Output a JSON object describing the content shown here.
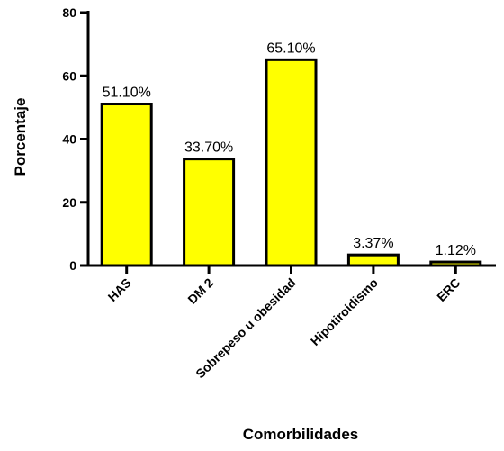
{
  "chart_data": {
    "type": "bar",
    "title": "",
    "xlabel": "Comorbilidades",
    "ylabel": "Porcentaje",
    "categories": [
      "HAS",
      "DM 2",
      "Sobrepeso u obesidad",
      "Hipotiroidismo",
      "ERC"
    ],
    "values": [
      51.1,
      33.7,
      65.1,
      3.37,
      1.12
    ],
    "data_labels": [
      "51.10%",
      "33.70%",
      "65.10%",
      "3.37%",
      "1.12%"
    ],
    "ylim": [
      0,
      80
    ],
    "yticks": [
      0,
      20,
      40,
      60,
      80
    ],
    "grid": false,
    "legend": "none",
    "bar_color": "#ffff00",
    "bar_stroke": "#000000"
  }
}
